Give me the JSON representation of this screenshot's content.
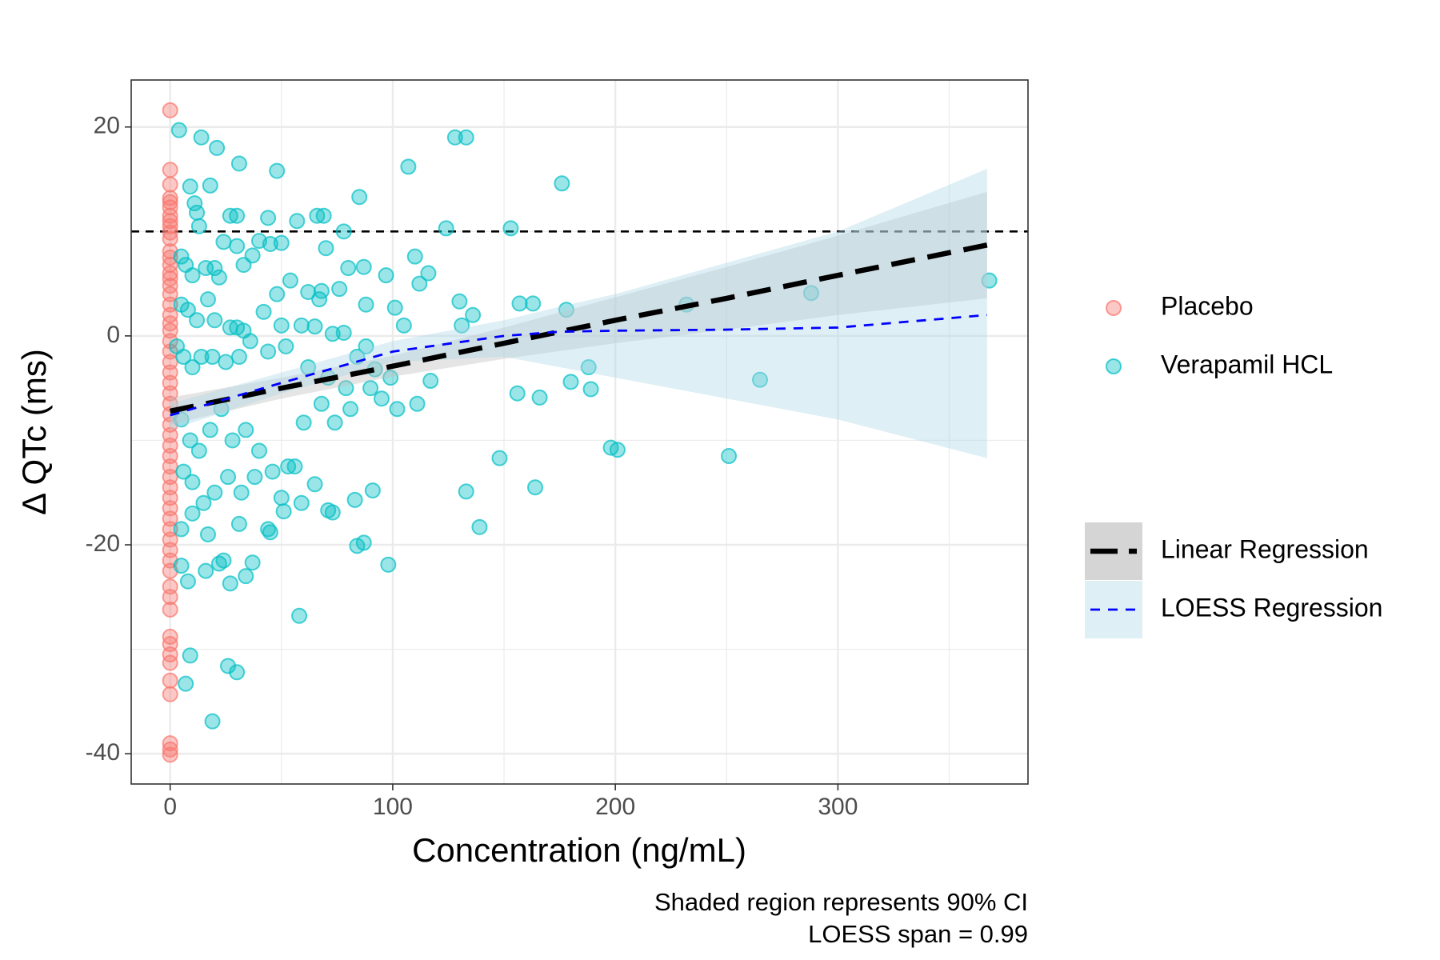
{
  "chart_data": {
    "type": "scatter",
    "xlabel": "Concentration (ng/mL)",
    "ylabel": "Δ QTc (ms)",
    "caption": [
      "Shaded region represents 90% CI",
      "LOESS span = 0.99"
    ],
    "xlim": [
      -17.5,
      385.4
    ],
    "ylim": [
      -42.9,
      24.5
    ],
    "xticks": [
      0,
      100,
      200,
      300
    ],
    "yticks": [
      -40,
      -20,
      0,
      20
    ],
    "xminor": [
      50,
      150,
      250,
      350
    ],
    "yminor": [
      -30,
      -10,
      10
    ],
    "grid": true,
    "hline": {
      "value": 10,
      "color": "#000000"
    },
    "series": [
      {
        "name": "Placebo",
        "color": "#f8766d",
        "x": [
          0,
          0,
          0,
          0,
          0,
          0,
          0,
          0,
          0,
          0,
          0,
          0,
          0,
          0,
          0,
          0,
          0,
          0,
          0,
          0,
          0,
          0,
          0,
          0,
          0,
          0,
          0,
          0,
          0,
          0,
          0,
          0,
          0,
          0,
          0,
          0,
          0,
          0,
          0,
          0,
          0,
          0,
          0,
          0,
          0,
          0,
          0,
          0,
          0,
          0,
          0,
          0,
          0,
          0,
          0,
          0,
          0
        ],
        "values": [
          21.6,
          15.9,
          14.5,
          13.2,
          12.8,
          12.3,
          11.5,
          11,
          10.5,
          9.9,
          9.3,
          8.1,
          7.5,
          6.8,
          6,
          5.5,
          4.8,
          4,
          3,
          2,
          1.2,
          0.5,
          -0.5,
          -1.5,
          -2.5,
          -3.5,
          -4.5,
          -5.5,
          -6.5,
          -7.5,
          -8.5,
          -9.5,
          -10.5,
          -11.5,
          -12.5,
          -13.5,
          -14.5,
          -15.5,
          -16.5,
          -17.5,
          -18.5,
          -19.5,
          -20.5,
          -21.5,
          -22.5,
          -24,
          -25,
          -26.2,
          -28.8,
          -29.5,
          -30.5,
          -31.3,
          -33,
          -34.3,
          -39,
          -39.6,
          -40.1
        ]
      },
      {
        "name": "Verapamil HCL",
        "color": "#00bfc4",
        "x": [
          4,
          14,
          21,
          31,
          48,
          18,
          9,
          11,
          12,
          27,
          30,
          44,
          57,
          66,
          69,
          85,
          78,
          13,
          24,
          30,
          40,
          45,
          50,
          70,
          5,
          7,
          10,
          16,
          20,
          22,
          33,
          37,
          48,
          54,
          62,
          67,
          68,
          76,
          80,
          87,
          97,
          101,
          110,
          112,
          116,
          130,
          136,
          157,
          163,
          178,
          232,
          288,
          368,
          5,
          8,
          12,
          17,
          20,
          27,
          30,
          33,
          42,
          50,
          59,
          65,
          73,
          78,
          88,
          105,
          131,
          3,
          6,
          10,
          14,
          19,
          25,
          31,
          36,
          44,
          52,
          62,
          71,
          79,
          88,
          95,
          99,
          102,
          111,
          117,
          148,
          156,
          166,
          180,
          188,
          189,
          198,
          201,
          251,
          265,
          5,
          9,
          13,
          18,
          23,
          28,
          34,
          40,
          46,
          53,
          60,
          68,
          74,
          81,
          90,
          6,
          10,
          15,
          20,
          26,
          32,
          38,
          44,
          50,
          56,
          65,
          71,
          83,
          91,
          5,
          10,
          17,
          24,
          31,
          37,
          45,
          51,
          59,
          73,
          84,
          87,
          98,
          133,
          139,
          164,
          5,
          8,
          16,
          22,
          27,
          34,
          58,
          9,
          26,
          30,
          7,
          19,
          128,
          133,
          176,
          107,
          124,
          153,
          84,
          92
        ],
        "values": [
          19.7,
          19,
          18,
          16.5,
          15.8,
          14.4,
          14.3,
          12.7,
          11.8,
          11.5,
          11.5,
          11.3,
          11,
          11.5,
          11.5,
          13.3,
          10,
          10.5,
          9,
          8.6,
          9.1,
          8.8,
          8.9,
          8.4,
          7.6,
          6.8,
          5.8,
          6.5,
          6.5,
          5.6,
          6.8,
          7.7,
          4,
          5.3,
          4.2,
          3.5,
          4.3,
          4.5,
          6.5,
          6.6,
          5.8,
          2.7,
          7.6,
          5,
          6,
          3.3,
          2,
          3.1,
          3.1,
          2.5,
          3,
          4.1,
          5.3,
          3,
          2.5,
          1.5,
          3.5,
          1.5,
          0.8,
          0.8,
          0.5,
          2.3,
          1,
          1,
          0.9,
          0.2,
          0.3,
          3,
          1,
          1,
          -1,
          -2,
          -3,
          -2,
          -2,
          -2.5,
          -2,
          -0.5,
          -1.5,
          -1,
          -3,
          -4,
          -5,
          -1,
          -6,
          -4,
          -7,
          -6.5,
          -4.3,
          -11.7,
          -5.5,
          -5.9,
          -4.4,
          -3,
          -5.1,
          -10.7,
          -10.9,
          -11.5,
          -4.2,
          -8,
          -10,
          -11,
          -9,
          -7,
          -10,
          -9,
          -11,
          -13,
          -12.5,
          -8.3,
          -6.5,
          -8.3,
          -7,
          -5,
          -13,
          -14,
          -16,
          -15,
          -13.5,
          -15,
          -13.5,
          -18.5,
          -15.5,
          -12.5,
          -14.2,
          -16.7,
          -15.7,
          -14.8,
          -18.5,
          -17,
          -19,
          -21.5,
          -18,
          -21.7,
          -18.8,
          -16.8,
          -16,
          -16.9,
          -20.1,
          -19.8,
          -21.9,
          -14.9,
          -18.3,
          -14.5,
          -22,
          -23.5,
          -22.5,
          -21.8,
          -23.7,
          -23,
          -26.8,
          -30.6,
          -31.6,
          -32.2,
          -33.3,
          -36.9,
          19,
          19,
          14.6,
          16.2,
          10.3,
          10.3,
          -2,
          -3.2
        ]
      }
    ],
    "fits": [
      {
        "name": "Linear Regression",
        "color": "#000000",
        "band_color": "#bebebe",
        "x": [
          0,
          50,
          100,
          150,
          200,
          250,
          300,
          367
        ],
        "values": [
          -7.2,
          -5.0,
          -2.9,
          -0.7,
          1.5,
          3.6,
          5.8,
          8.7
        ],
        "lower": [
          -8.5,
          -6.0,
          -3.9,
          -2.2,
          -0.7,
          0.6,
          2.0,
          3.6
        ],
        "upper": [
          -5.9,
          -4.0,
          -1.9,
          0.8,
          3.7,
          6.6,
          9.6,
          13.8
        ]
      },
      {
        "name": "LOESS Regression",
        "color": "#0000ff",
        "band_color": "#add8e6",
        "x": [
          0,
          50,
          100,
          150,
          175,
          200,
          250,
          300,
          367
        ],
        "values": [
          -7.6,
          -4.5,
          -1.5,
          0.0,
          0.4,
          0.5,
          0.6,
          0.8,
          2.0
        ],
        "lower": [
          -9.0,
          -5.5,
          -2.5,
          -2.0,
          -3.0,
          -4.0,
          -6.0,
          -8.0,
          -11.7
        ],
        "upper": [
          -6.5,
          -3.5,
          -0.5,
          1.5,
          2.8,
          4.0,
          7.0,
          10.0,
          16.0
        ]
      }
    ]
  }
}
